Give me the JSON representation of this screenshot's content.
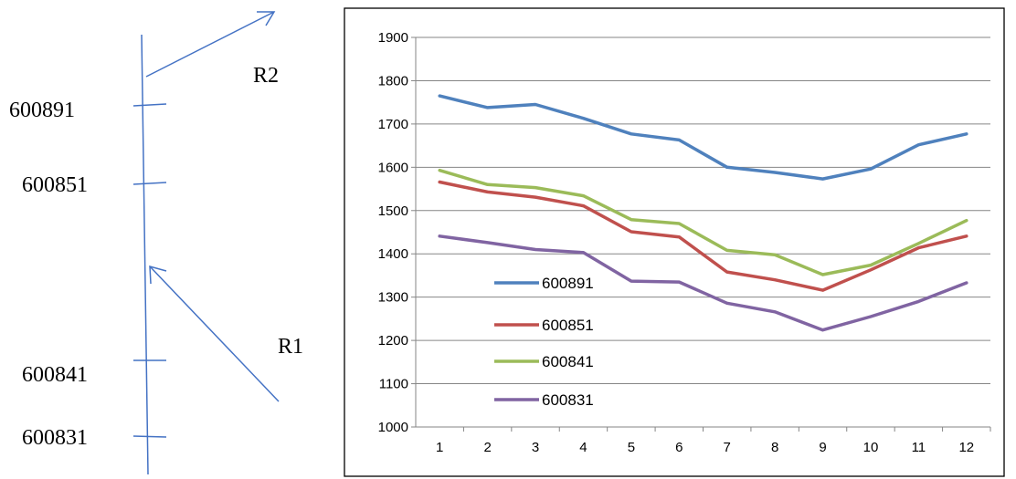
{
  "diagram": {
    "line_color": "#4472C4",
    "stations": [
      "600891",
      "600851",
      "600841",
      "600831"
    ],
    "rivers": [
      "R2",
      "R1"
    ]
  },
  "chart_data": {
    "type": "line",
    "title": "",
    "xlabel": "",
    "ylabel": "",
    "x": [
      1,
      2,
      3,
      4,
      5,
      6,
      7,
      8,
      9,
      10,
      11,
      12
    ],
    "ylim": [
      1000,
      1900
    ],
    "yticks": [
      1000,
      1100,
      1200,
      1300,
      1400,
      1500,
      1600,
      1700,
      1800,
      1900
    ],
    "grid": true,
    "legend_position": "inside-lower-left",
    "series": [
      {
        "name": "600891",
        "color": "#4F81BD",
        "values": [
          1765,
          1738,
          1745,
          1713,
          1677,
          1663,
          1600,
          1588,
          1573,
          1596,
          1652,
          1677
        ]
      },
      {
        "name": "600851",
        "color": "#C0504D",
        "values": [
          1566,
          1543,
          1531,
          1511,
          1451,
          1439,
          1358,
          1340,
          1316,
          1363,
          1414,
          1441
        ]
      },
      {
        "name": "600841",
        "color": "#9BBB59",
        "values": [
          1593,
          1560,
          1553,
          1534,
          1479,
          1470,
          1408,
          1398,
          1352,
          1374,
          1424,
          1477
        ]
      },
      {
        "name": "600831",
        "color": "#8064A2",
        "values": [
          1441,
          1426,
          1410,
          1403,
          1337,
          1335,
          1286,
          1266,
          1224,
          1255,
          1290,
          1333
        ]
      }
    ]
  }
}
